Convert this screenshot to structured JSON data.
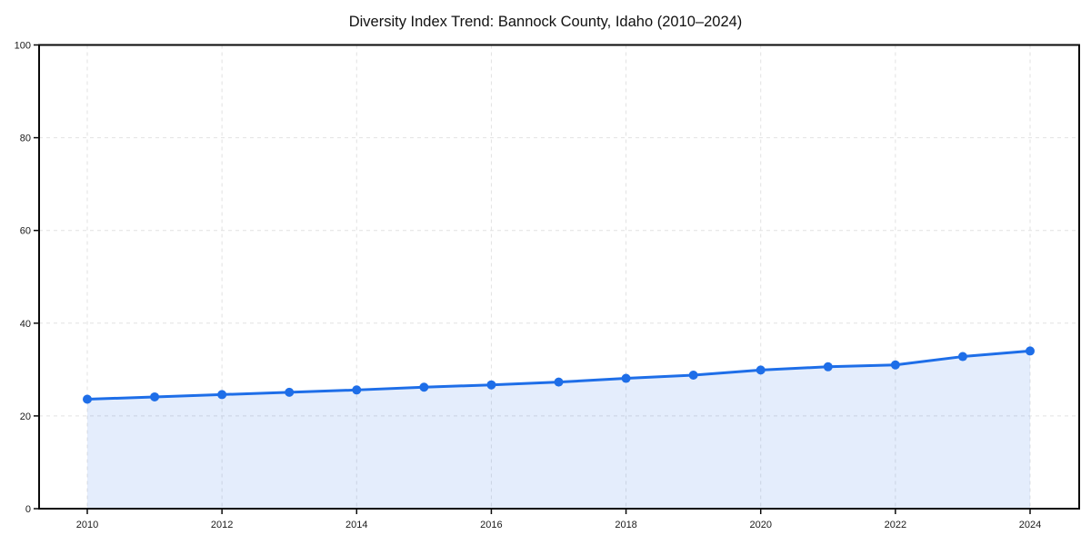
{
  "chart_data": {
    "type": "line",
    "title": "Diversity Index Trend: Bannock County, Idaho (2010–2024)",
    "x": [
      2010,
      2011,
      2012,
      2013,
      2014,
      2015,
      2016,
      2017,
      2018,
      2019,
      2020,
      2021,
      2022,
      2023,
      2024
    ],
    "series": [
      {
        "name": "Diversity Index",
        "values": [
          23.6,
          24.1,
          24.6,
          25.1,
          25.6,
          26.2,
          26.7,
          27.3,
          28.1,
          28.8,
          29.9,
          30.6,
          31.0,
          32.8,
          34.0
        ]
      }
    ],
    "xticks": [
      2010,
      2012,
      2014,
      2016,
      2018,
      2020,
      2022,
      2024
    ],
    "yticks": [
      0,
      20,
      40,
      60,
      80,
      100
    ],
    "ylim": [
      0,
      100
    ],
    "xlabel": "",
    "ylabel": "",
    "grid": true,
    "grid_style": "dashed",
    "legend_position": "none",
    "area_fill": true,
    "marker_shape": "circle",
    "colors": {
      "line": "#1e6ee8",
      "marker": "#1e6ee8",
      "fill": "rgba(30,110,232,0.12)",
      "grid": "#e2e2e2",
      "axis": "#0a0a0a",
      "tick_label": "#1a1a1a",
      "title": "#111111",
      "background": "#ffffff"
    }
  }
}
